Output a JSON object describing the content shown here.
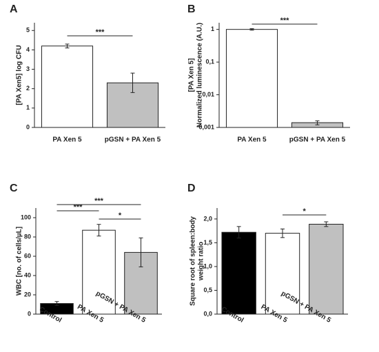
{
  "chart_data": [
    {
      "type": "bar",
      "label": "A",
      "ylabel": "[PA Xen5] log CFU",
      "categories": [
        "PA Xen 5",
        "pGSN + PA Xen 5"
      ],
      "values": [
        4.2,
        2.3
      ],
      "errors": [
        0.1,
        0.5
      ],
      "colors": [
        "#ffffff",
        "#c0c0c0"
      ],
      "ylim": [
        0,
        5.4
      ],
      "yticks": [
        0,
        1,
        2,
        3,
        4,
        5
      ],
      "annotations": [
        "***"
      ]
    },
    {
      "type": "bar",
      "label": "B",
      "ylabel": [
        "[PA Xen 5]",
        "Normalized  luminescence  (A.U.)"
      ],
      "yscale": "log",
      "categories": [
        "PA Xen 5",
        "pGSN + PA Xen 5"
      ],
      "values": [
        1,
        0.0014
      ],
      "errors": [
        0.05,
        0.0002
      ],
      "colors": [
        "#ffffff",
        "#c0c0c0"
      ],
      "ylim": [
        0.001,
        1.6
      ],
      "yticks": [
        {
          "value": 0.001,
          "label": "0,001"
        },
        {
          "value": 0.01,
          "label": "0,01"
        },
        {
          "value": 0.1,
          "label": "0,1"
        },
        1
      ],
      "annotations": [
        "***"
      ]
    },
    {
      "type": "bar",
      "label": "C",
      "ylabel": "WBC [no. of cells/µL]",
      "rotated_categories": true,
      "categories": [
        "Control",
        "PA Xen 5",
        "pGSN + PA Xen 5"
      ],
      "values": [
        11,
        87,
        64
      ],
      "errors": [
        2,
        6,
        15
      ],
      "colors": [
        "#000000",
        "#ffffff",
        "#c0c0c0"
      ],
      "ylim": [
        0,
        110
      ],
      "yticks": [
        0,
        20,
        40,
        60,
        80,
        100
      ],
      "annotations": [
        "***",
        "***",
        "*"
      ]
    },
    {
      "type": "bar",
      "label": "D",
      "ylabel": [
        "Square root of spleen:body",
        "weight ratio"
      ],
      "rotated_categories": true,
      "categories": [
        "Control",
        "PA Xen 5",
        "pGSN + PA Xen 5"
      ],
      "values": [
        1.72,
        1.7,
        1.89
      ],
      "errors": [
        0.12,
        0.09,
        0.05
      ],
      "colors": [
        "#000000",
        "#ffffff",
        "#c0c0c0"
      ],
      "ylim": [
        0,
        2.23
      ],
      "yticks": [
        {
          "value": 0,
          "label": "0,0"
        },
        {
          "value": 0.5,
          "label": "0,5"
        },
        {
          "value": 1,
          "label": "1,0"
        },
        {
          "value": 1.5,
          "label": "1,5"
        },
        {
          "value": 2,
          "label": "2,0"
        }
      ],
      "annotations": [
        "*"
      ]
    }
  ]
}
